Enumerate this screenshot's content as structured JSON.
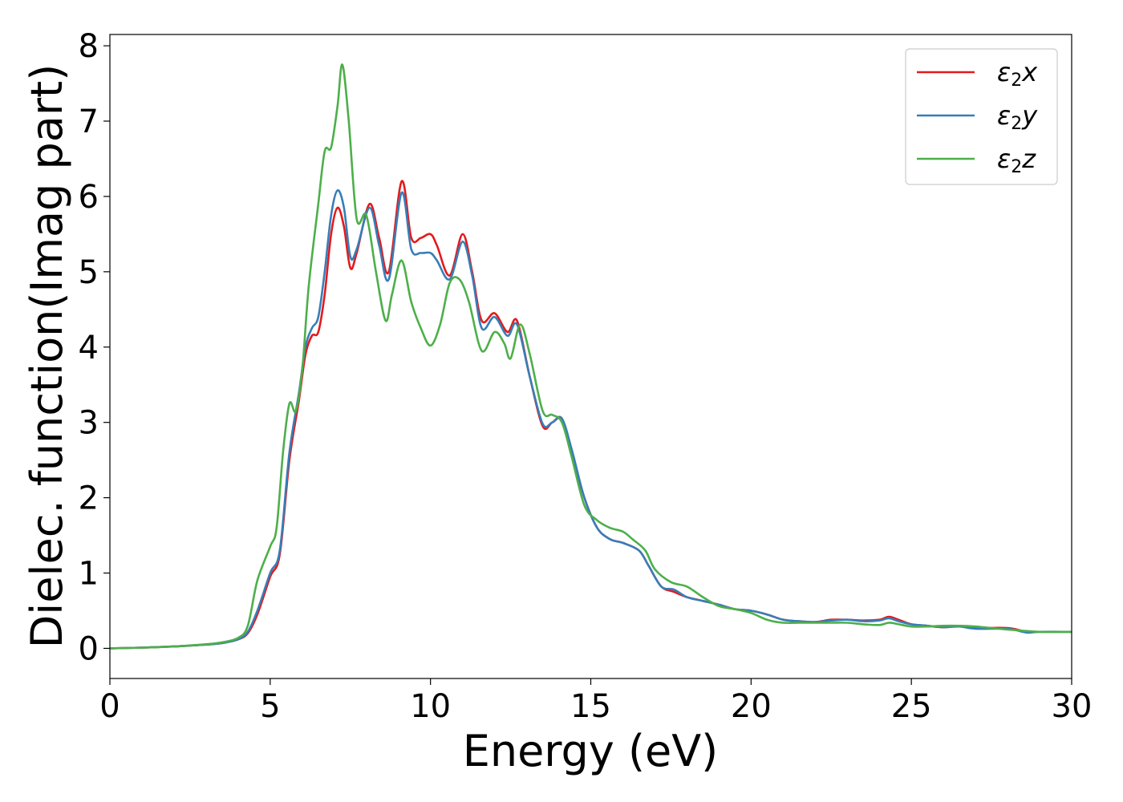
{
  "chart_data": {
    "type": "line",
    "xlabel": "Energy (eV)",
    "ylabel": "Dielec. function(Imag part)",
    "xlim": [
      0,
      30
    ],
    "ylim": [
      -0.4,
      8.15
    ],
    "xticks": [
      0,
      5,
      10,
      15,
      20,
      25,
      30
    ],
    "yticks": [
      0,
      1,
      2,
      3,
      4,
      5,
      6,
      7,
      8
    ],
    "grid": false,
    "legend_position": "top-right",
    "series": [
      {
        "name": "ε2x",
        "legend_main": "ε",
        "legend_sub": "2",
        "legend_suffix": "x",
        "color": "#e41a1c",
        "points": [
          [
            0,
            0
          ],
          [
            1,
            0.01
          ],
          [
            2,
            0.025
          ],
          [
            3,
            0.05
          ],
          [
            3.5,
            0.07
          ],
          [
            4,
            0.12
          ],
          [
            4.3,
            0.2
          ],
          [
            4.6,
            0.45
          ],
          [
            5,
            0.95
          ],
          [
            5.3,
            1.25
          ],
          [
            5.6,
            2.5
          ],
          [
            5.9,
            3.3
          ],
          [
            6.1,
            3.9
          ],
          [
            6.3,
            4.15
          ],
          [
            6.5,
            4.2
          ],
          [
            6.7,
            4.7
          ],
          [
            6.9,
            5.5
          ],
          [
            7.1,
            5.85
          ],
          [
            7.3,
            5.6
          ],
          [
            7.5,
            5.05
          ],
          [
            7.7,
            5.25
          ],
          [
            8.1,
            5.9
          ],
          [
            8.4,
            5.45
          ],
          [
            8.7,
            5.0
          ],
          [
            9.1,
            6.2
          ],
          [
            9.4,
            5.45
          ],
          [
            9.7,
            5.45
          ],
          [
            10.0,
            5.5
          ],
          [
            10.2,
            5.35
          ],
          [
            10.6,
            4.95
          ],
          [
            11.0,
            5.5
          ],
          [
            11.3,
            5.0
          ],
          [
            11.6,
            4.35
          ],
          [
            12.0,
            4.45
          ],
          [
            12.4,
            4.2
          ],
          [
            12.7,
            4.35
          ],
          [
            13.1,
            3.6
          ],
          [
            13.5,
            2.95
          ],
          [
            13.8,
            3.0
          ],
          [
            14.1,
            3.05
          ],
          [
            14.4,
            2.6
          ],
          [
            14.8,
            2.0
          ],
          [
            15.2,
            1.6
          ],
          [
            15.6,
            1.45
          ],
          [
            16.0,
            1.4
          ],
          [
            16.5,
            1.3
          ],
          [
            16.8,
            1.1
          ],
          [
            17.2,
            0.82
          ],
          [
            17.6,
            0.75
          ],
          [
            18.0,
            0.68
          ],
          [
            18.5,
            0.63
          ],
          [
            19.0,
            0.58
          ],
          [
            19.5,
            0.52
          ],
          [
            20.0,
            0.5
          ],
          [
            20.5,
            0.45
          ],
          [
            21.0,
            0.38
          ],
          [
            21.5,
            0.36
          ],
          [
            22.0,
            0.35
          ],
          [
            22.5,
            0.38
          ],
          [
            23.0,
            0.38
          ],
          [
            23.5,
            0.37
          ],
          [
            24.0,
            0.38
          ],
          [
            24.3,
            0.42
          ],
          [
            24.6,
            0.38
          ],
          [
            25.0,
            0.32
          ],
          [
            25.5,
            0.3
          ],
          [
            26.0,
            0.28
          ],
          [
            26.5,
            0.3
          ],
          [
            27.0,
            0.27
          ],
          [
            28.0,
            0.27
          ],
          [
            28.6,
            0.22
          ],
          [
            29.0,
            0.22
          ],
          [
            30.0,
            0.22
          ]
        ]
      },
      {
        "name": "ε2y",
        "legend_main": "ε",
        "legend_sub": "2",
        "legend_suffix": "y",
        "color": "#377eb8",
        "points": [
          [
            0,
            0
          ],
          [
            1,
            0.01
          ],
          [
            2,
            0.025
          ],
          [
            3,
            0.05
          ],
          [
            3.5,
            0.07
          ],
          [
            4,
            0.12
          ],
          [
            4.3,
            0.22
          ],
          [
            4.6,
            0.5
          ],
          [
            5,
            1.0
          ],
          [
            5.3,
            1.3
          ],
          [
            5.6,
            2.6
          ],
          [
            5.9,
            3.4
          ],
          [
            6.1,
            4.0
          ],
          [
            6.3,
            4.25
          ],
          [
            6.5,
            4.4
          ],
          [
            6.7,
            5.0
          ],
          [
            6.9,
            5.75
          ],
          [
            7.1,
            6.08
          ],
          [
            7.3,
            5.85
          ],
          [
            7.5,
            5.2
          ],
          [
            7.7,
            5.3
          ],
          [
            8.1,
            5.85
          ],
          [
            8.4,
            5.35
          ],
          [
            8.7,
            4.9
          ],
          [
            9.1,
            6.05
          ],
          [
            9.4,
            5.3
          ],
          [
            9.7,
            5.25
          ],
          [
            10.0,
            5.25
          ],
          [
            10.2,
            5.15
          ],
          [
            10.6,
            4.9
          ],
          [
            11.0,
            5.4
          ],
          [
            11.3,
            4.95
          ],
          [
            11.6,
            4.25
          ],
          [
            12.0,
            4.4
          ],
          [
            12.4,
            4.15
          ],
          [
            12.7,
            4.3
          ],
          [
            13.1,
            3.6
          ],
          [
            13.5,
            2.98
          ],
          [
            13.8,
            3.0
          ],
          [
            14.1,
            3.05
          ],
          [
            14.4,
            2.65
          ],
          [
            14.8,
            2.0
          ],
          [
            15.2,
            1.6
          ],
          [
            15.6,
            1.45
          ],
          [
            16.0,
            1.4
          ],
          [
            16.5,
            1.3
          ],
          [
            16.8,
            1.1
          ],
          [
            17.2,
            0.82
          ],
          [
            17.6,
            0.78
          ],
          [
            18.0,
            0.68
          ],
          [
            18.5,
            0.63
          ],
          [
            19.0,
            0.58
          ],
          [
            19.5,
            0.52
          ],
          [
            20.0,
            0.5
          ],
          [
            20.5,
            0.45
          ],
          [
            21.0,
            0.38
          ],
          [
            21.5,
            0.36
          ],
          [
            22.0,
            0.35
          ],
          [
            22.5,
            0.37
          ],
          [
            23.0,
            0.38
          ],
          [
            23.5,
            0.36
          ],
          [
            24.0,
            0.37
          ],
          [
            24.3,
            0.4
          ],
          [
            24.6,
            0.36
          ],
          [
            25.0,
            0.32
          ],
          [
            25.5,
            0.3
          ],
          [
            26.0,
            0.28
          ],
          [
            26.5,
            0.29
          ],
          [
            27.0,
            0.26
          ],
          [
            28.0,
            0.26
          ],
          [
            28.6,
            0.21
          ],
          [
            29.0,
            0.22
          ],
          [
            30.0,
            0.22
          ]
        ]
      },
      {
        "name": "ε2z",
        "legend_main": "ε",
        "legend_sub": "2",
        "legend_suffix": "z",
        "color": "#4daf4a",
        "points": [
          [
            0,
            0
          ],
          [
            1,
            0.01
          ],
          [
            2,
            0.025
          ],
          [
            3,
            0.055
          ],
          [
            3.5,
            0.08
          ],
          [
            4,
            0.14
          ],
          [
            4.3,
            0.3
          ],
          [
            4.6,
            0.9
          ],
          [
            5,
            1.35
          ],
          [
            5.2,
            1.6
          ],
          [
            5.4,
            2.6
          ],
          [
            5.6,
            3.25
          ],
          [
            5.8,
            3.15
          ],
          [
            6.0,
            3.7
          ],
          [
            6.2,
            4.8
          ],
          [
            6.5,
            5.9
          ],
          [
            6.7,
            6.6
          ],
          [
            6.9,
            6.65
          ],
          [
            7.1,
            7.2
          ],
          [
            7.25,
            7.75
          ],
          [
            7.45,
            7.0
          ],
          [
            7.7,
            5.7
          ],
          [
            8.0,
            5.75
          ],
          [
            8.3,
            5.0
          ],
          [
            8.6,
            4.35
          ],
          [
            8.8,
            4.7
          ],
          [
            9.1,
            5.15
          ],
          [
            9.4,
            4.6
          ],
          [
            9.7,
            4.25
          ],
          [
            10.0,
            4.02
          ],
          [
            10.3,
            4.3
          ],
          [
            10.6,
            4.85
          ],
          [
            10.9,
            4.9
          ],
          [
            11.2,
            4.6
          ],
          [
            11.6,
            3.95
          ],
          [
            12.0,
            4.2
          ],
          [
            12.3,
            4.05
          ],
          [
            12.5,
            3.85
          ],
          [
            12.8,
            4.3
          ],
          [
            13.1,
            3.9
          ],
          [
            13.5,
            3.15
          ],
          [
            13.8,
            3.1
          ],
          [
            14.1,
            3.0
          ],
          [
            14.4,
            2.55
          ],
          [
            14.8,
            1.9
          ],
          [
            15.2,
            1.7
          ],
          [
            15.6,
            1.6
          ],
          [
            16.0,
            1.55
          ],
          [
            16.3,
            1.45
          ],
          [
            16.7,
            1.3
          ],
          [
            17.0,
            1.05
          ],
          [
            17.5,
            0.88
          ],
          [
            18.0,
            0.82
          ],
          [
            18.5,
            0.68
          ],
          [
            19.0,
            0.56
          ],
          [
            19.5,
            0.52
          ],
          [
            20.0,
            0.47
          ],
          [
            20.5,
            0.38
          ],
          [
            21.0,
            0.34
          ],
          [
            21.5,
            0.34
          ],
          [
            22.0,
            0.34
          ],
          [
            22.5,
            0.34
          ],
          [
            23.0,
            0.34
          ],
          [
            23.5,
            0.32
          ],
          [
            24.0,
            0.31
          ],
          [
            24.3,
            0.34
          ],
          [
            24.6,
            0.32
          ],
          [
            25.0,
            0.29
          ],
          [
            25.5,
            0.29
          ],
          [
            26.0,
            0.3
          ],
          [
            26.5,
            0.3
          ],
          [
            27.0,
            0.29
          ],
          [
            27.5,
            0.27
          ],
          [
            28.0,
            0.25
          ],
          [
            29.0,
            0.22
          ],
          [
            30.0,
            0.22
          ]
        ]
      }
    ]
  }
}
